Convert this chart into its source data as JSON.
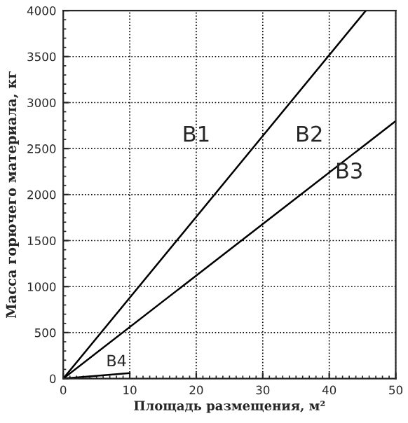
{
  "chart_data": {
    "type": "line",
    "xlabel": "Площадь размещения, м²",
    "ylabel": "Масса горючего материала, кг",
    "series": [
      {
        "color": "#000000",
        "x": [
          0,
          45.5
        ],
        "values": [
          0,
          4000
        ]
      },
      {
        "color": "#000000",
        "x": [
          0,
          50
        ],
        "values": [
          0,
          2800
        ]
      },
      {
        "color": "#000000",
        "x": [
          0,
          10
        ],
        "values": [
          0,
          60
        ]
      }
    ],
    "annotations": [
      "B1",
      "B2",
      "B3",
      "B4"
    ],
    "xlim": [
      0,
      50
    ],
    "ylim": [
      0,
      4000
    ],
    "xticks": [
      0,
      10,
      20,
      30,
      40,
      50
    ],
    "yticks": [
      0,
      500,
      1000,
      1500,
      2000,
      2500,
      3000,
      3500,
      4000
    ],
    "grid": true,
    "line_style": "solid",
    "marker": "none"
  }
}
